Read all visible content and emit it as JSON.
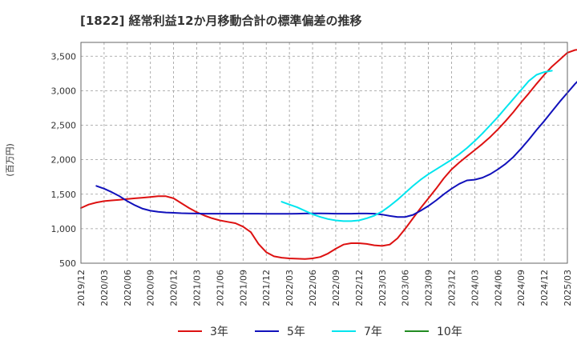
{
  "chart_data": {
    "type": "line",
    "title": "[1822]  経常利益12か月移動合計の標準偏差の推移",
    "ylabel": "(百万円)",
    "xlabel": "",
    "ylim": [
      500,
      3700
    ],
    "yticks": [
      500,
      1000,
      1500,
      2000,
      2500,
      3000,
      3500
    ],
    "ytick_labels": [
      "500",
      "1,000",
      "1,500",
      "2,000",
      "2,500",
      "3,000",
      "3,500"
    ],
    "x_start": "2019-12",
    "x_end": "2025-03",
    "xtick_labels": [
      "2019/12",
      "2020/03",
      "2020/06",
      "2020/09",
      "2020/12",
      "2021/03",
      "2021/06",
      "2021/09",
      "2021/12",
      "2022/03",
      "2022/06",
      "2022/09",
      "2022/12",
      "2023/03",
      "2023/06",
      "2023/09",
      "2023/12",
      "2024/03",
      "2024/06",
      "2024/09",
      "2024/12",
      "2025/03"
    ],
    "grid": true,
    "legend_position": "bottom",
    "series": [
      {
        "name": "3年",
        "color": "#dd1111",
        "start": "2019-12",
        "values": [
          1300,
          1350,
          1380,
          1400,
          1410,
          1420,
          1430,
          1440,
          1450,
          1460,
          1470,
          1470,
          1440,
          1370,
          1300,
          1240,
          1190,
          1150,
          1120,
          1100,
          1080,
          1030,
          950,
          780,
          660,
          600,
          580,
          570,
          565,
          560,
          570,
          590,
          640,
          710,
          770,
          790,
          790,
          780,
          760,
          750,
          770,
          860,
          1000,
          1150,
          1300,
          1440,
          1580,
          1730,
          1860,
          1960,
          2050,
          2140,
          2230,
          2330,
          2440,
          2560,
          2690,
          2830,
          2960,
          3100,
          3230,
          3350,
          3450,
          3550,
          3590,
          3600,
          3580,
          3550
        ]
      },
      {
        "name": "5年",
        "color": "#1111bb",
        "start": "2020-02",
        "values": [
          1620,
          1580,
          1530,
          1470,
          1400,
          1340,
          1290,
          1260,
          1245,
          1235,
          1230,
          1225,
          1222,
          1220,
          1218,
          1218,
          1218,
          1218,
          1218,
          1218,
          1218,
          1218,
          1216,
          1215,
          1215,
          1216,
          1218,
          1220,
          1222,
          1222,
          1220,
          1218,
          1218,
          1218,
          1220,
          1220,
          1218,
          1205,
          1185,
          1170,
          1170,
          1200,
          1260,
          1330,
          1410,
          1500,
          1580,
          1650,
          1700,
          1710,
          1740,
          1790,
          1860,
          1940,
          2040,
          2160,
          2290,
          2430,
          2560,
          2700,
          2840,
          2970,
          3100,
          3210,
          3270,
          3300,
          3320
        ]
      },
      {
        "name": "7年",
        "color": "#00e5ee",
        "start": "2022-02",
        "values": [
          1390,
          1350,
          1310,
          1260,
          1210,
          1170,
          1140,
          1120,
          1110,
          1110,
          1120,
          1150,
          1190,
          1250,
          1330,
          1420,
          1520,
          1620,
          1710,
          1790,
          1860,
          1930,
          2000,
          2080,
          2170,
          2270,
          2380,
          2500,
          2620,
          2750,
          2880,
          3010,
          3140,
          3230,
          3270,
          3290
        ]
      },
      {
        "name": "10年",
        "color": "#228b22",
        "start": "2019-12",
        "values": []
      }
    ]
  }
}
